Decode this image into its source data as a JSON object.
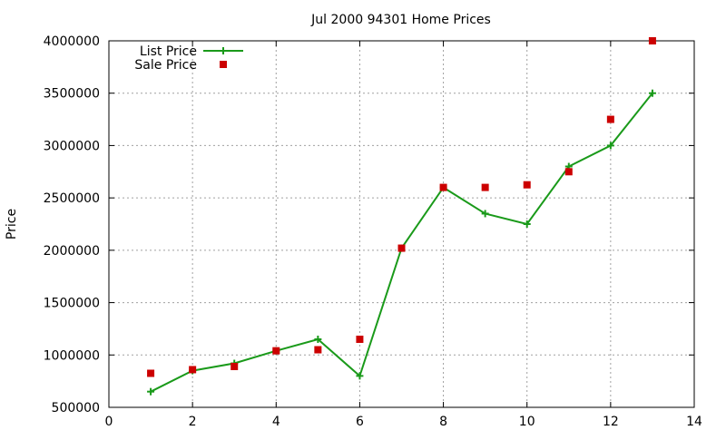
{
  "chart_data": {
    "type": "line",
    "title": "Jul 2000 94301 Home Prices",
    "xlabel": "",
    "ylabel": "Price",
    "xlim": [
      0,
      14
    ],
    "ylim": [
      500000,
      4000000
    ],
    "x_ticks": [
      0,
      2,
      4,
      6,
      8,
      10,
      12,
      14
    ],
    "y_ticks": [
      500000,
      1000000,
      1500000,
      2000000,
      2500000,
      3000000,
      3500000,
      4000000
    ],
    "grid": true,
    "legend_position": "top-left",
    "series": [
      {
        "name": "List Price",
        "style": "line-with-plus-markers",
        "color": "#1a9a1a",
        "x": [
          1,
          2,
          3,
          4,
          5,
          6,
          7,
          8,
          9,
          10,
          11,
          12,
          13
        ],
        "y": [
          650000,
          850000,
          920000,
          1040000,
          1150000,
          800000,
          2020000,
          2600000,
          2350000,
          2250000,
          2800000,
          3000000,
          3500000
        ]
      },
      {
        "name": "Sale Price",
        "style": "square-markers",
        "color": "#cc0000",
        "x": [
          1,
          2,
          3,
          4,
          5,
          6,
          7,
          8,
          9,
          10,
          11,
          12,
          13
        ],
        "y": [
          825000,
          860000,
          890000,
          1040000,
          1050000,
          1150000,
          2020000,
          2600000,
          2600000,
          2625000,
          2750000,
          3250000,
          4000000
        ]
      }
    ]
  }
}
